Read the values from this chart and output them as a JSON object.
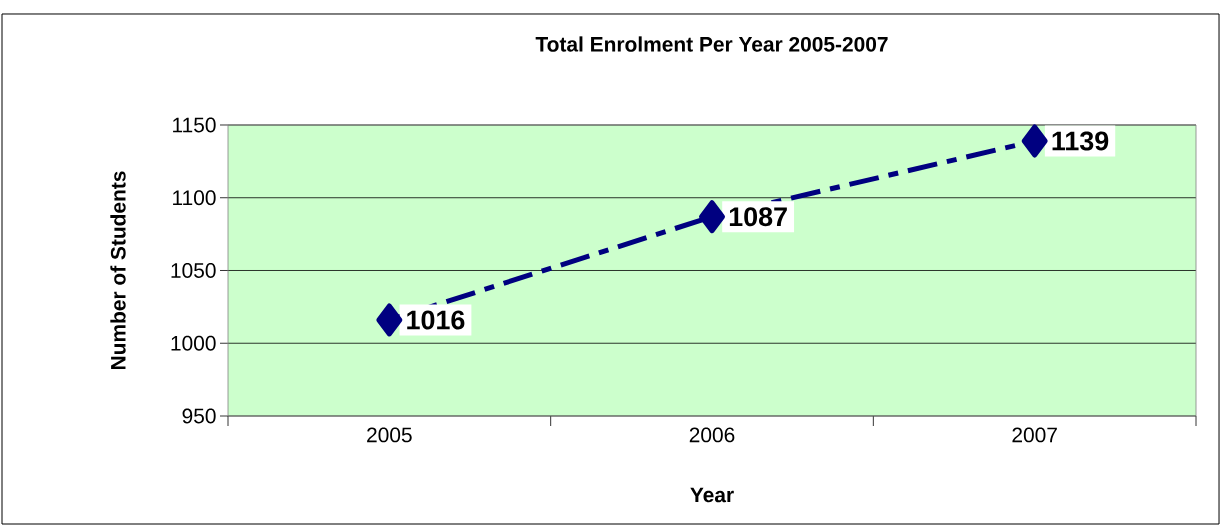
{
  "chart_data": {
    "type": "line",
    "title": "Total Enrolment Per Year 2005-2007",
    "xlabel": "Year",
    "ylabel": "Number of Students",
    "categories": [
      "2005",
      "2006",
      "2007"
    ],
    "values": [
      1016,
      1087,
      1139
    ],
    "color": "#000080",
    "ylim": [
      950,
      1150
    ],
    "yticks": [
      950,
      1000,
      1050,
      1100,
      1150
    ],
    "grid": "y",
    "marker": "diamond",
    "line_style": "dashed",
    "data_labels": true
  }
}
